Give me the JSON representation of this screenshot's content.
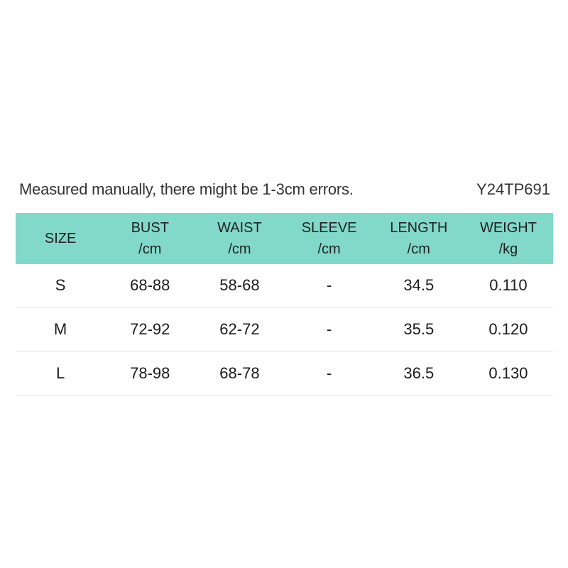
{
  "note": {
    "text": "Measured manually, there might be 1-3cm errors."
  },
  "product_code": "Y24TP691",
  "colors": {
    "header_bg": "#82d8c9",
    "row_separator": "#f1f1f1",
    "text": "#222222",
    "background": "#ffffff"
  },
  "chart_data": {
    "type": "table",
    "note": "Measured manually, there might be 1-3cm errors.",
    "product_code": "Y24TP691",
    "columns": [
      {
        "label": "SIZE",
        "unit": ""
      },
      {
        "label": "BUST",
        "unit": "/cm"
      },
      {
        "label": "WAIST",
        "unit": "/cm"
      },
      {
        "label": "SLEEVE",
        "unit": "/cm"
      },
      {
        "label": "LENGTH",
        "unit": "/cm"
      },
      {
        "label": "WEIGHT",
        "unit": "/kg"
      }
    ],
    "rows": [
      {
        "size": "S",
        "bust": "68-88",
        "waist": "58-68",
        "sleeve": "-",
        "length": "34.5",
        "weight": "0.110"
      },
      {
        "size": "M",
        "bust": "72-92",
        "waist": "62-72",
        "sleeve": "-",
        "length": "35.5",
        "weight": "0.120"
      },
      {
        "size": "L",
        "bust": "78-98",
        "waist": "68-78",
        "sleeve": "-",
        "length": "36.5",
        "weight": "0.130"
      }
    ]
  }
}
